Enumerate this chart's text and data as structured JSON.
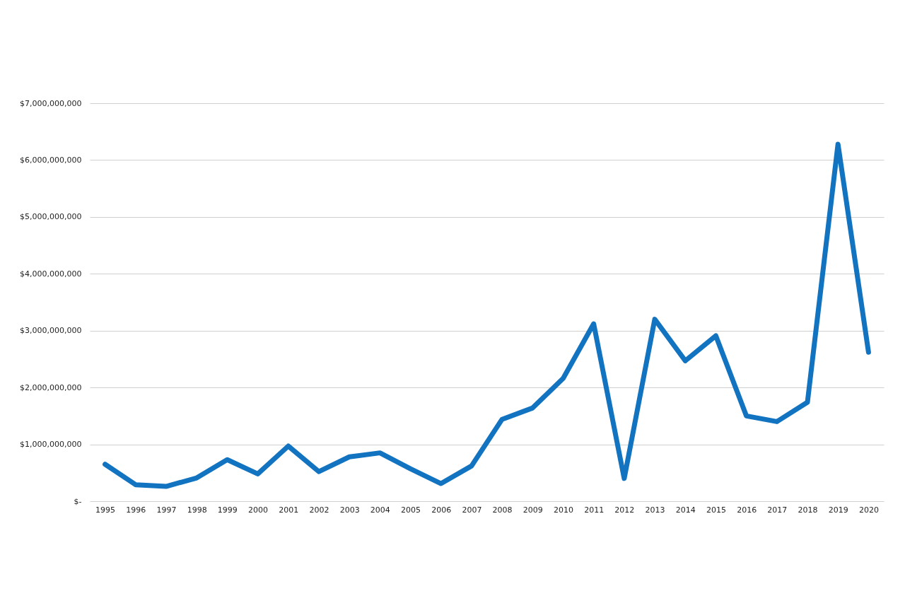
{
  "chart_data": {
    "type": "line",
    "categories": [
      "1995",
      "1996",
      "1997",
      "1998",
      "1999",
      "2000",
      "2001",
      "2002",
      "2003",
      "2004",
      "2005",
      "2006",
      "2007",
      "2008",
      "2009",
      "2010",
      "2011",
      "2012",
      "2013",
      "2014",
      "2015",
      "2016",
      "2017",
      "2018",
      "2019",
      "2020"
    ],
    "series": [
      {
        "color": "#1273c0",
        "values": [
          650000000,
          290000000,
          260000000,
          410000000,
          730000000,
          480000000,
          970000000,
          520000000,
          780000000,
          850000000,
          570000000,
          310000000,
          620000000,
          1440000000,
          1640000000,
          2160000000,
          3120000000,
          400000000,
          3200000000,
          2470000000,
          2910000000,
          1500000000,
          1400000000,
          1740000000,
          6280000000,
          2620000000
        ]
      }
    ],
    "ylim": [
      0,
      7000000000
    ],
    "yticks": [
      {
        "value": 0,
        "label": "$-"
      },
      {
        "value": 1000000000,
        "label": "$1,000,000,000"
      },
      {
        "value": 2000000000,
        "label": "$2,000,000,000"
      },
      {
        "value": 3000000000,
        "label": "$3,000,000,000"
      },
      {
        "value": 4000000000,
        "label": "$4,000,000,000"
      },
      {
        "value": 5000000000,
        "label": "$5,000,000,000"
      },
      {
        "value": 6000000000,
        "label": "$6,000,000,000"
      },
      {
        "value": 7000000000,
        "label": "$7,000,000,000"
      }
    ],
    "grid": "y",
    "legend": false,
    "marker": "none",
    "line_style": "solid"
  }
}
